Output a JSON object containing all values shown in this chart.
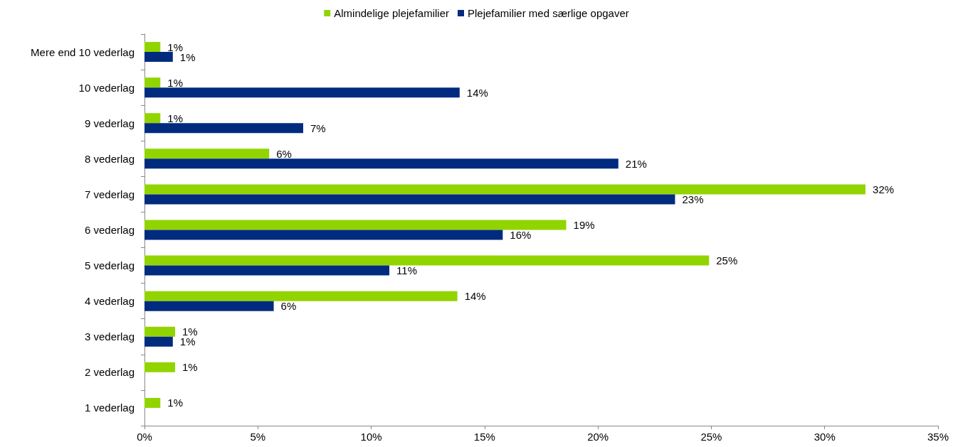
{
  "chart_data": {
    "type": "bar",
    "orientation": "horizontal",
    "categories": [
      "Mere end 10 vederlag",
      "10 vederlag",
      "9 vederlag",
      "8 vederlag",
      "7 vederlag",
      "6 vederlag",
      "5 vederlag",
      "4 vederlag",
      "3 vederlag",
      "2 vederlag",
      "1 vederlag"
    ],
    "series": [
      {
        "name": "Almindelige plejefamilier",
        "color": "#92d400",
        "values": [
          0.7,
          0.7,
          0.7,
          5.5,
          31.8,
          18.6,
          24.9,
          13.8,
          1.35,
          1.35,
          0.7
        ],
        "value_labels": [
          "1%",
          "1%",
          "1%",
          "6%",
          "32%",
          "19%",
          "25%",
          "14%",
          "1%",
          "1%",
          "1%"
        ]
      },
      {
        "name": "Plejefamilier med særlige opgaver",
        "color": "#002b7f",
        "values": [
          1.25,
          13.9,
          7.0,
          20.9,
          23.4,
          15.8,
          10.8,
          5.7,
          1.25,
          null,
          null
        ],
        "value_labels": [
          "1%",
          "14%",
          "7%",
          "21%",
          "23%",
          "16%",
          "11%",
          "6%",
          "1%",
          null,
          null
        ]
      }
    ],
    "xlim": [
      0,
      35
    ],
    "xticks": [
      {
        "value": 0,
        "label": "0%"
      },
      {
        "value": 5,
        "label": "5%"
      },
      {
        "value": 10,
        "label": "10%"
      },
      {
        "value": 15,
        "label": "15%"
      },
      {
        "value": 20,
        "label": "20%"
      },
      {
        "value": 25,
        "label": "25%"
      },
      {
        "value": 30,
        "label": "30%"
      },
      {
        "value": 35,
        "label": "35%"
      }
    ],
    "grid": false,
    "legend": "top"
  }
}
